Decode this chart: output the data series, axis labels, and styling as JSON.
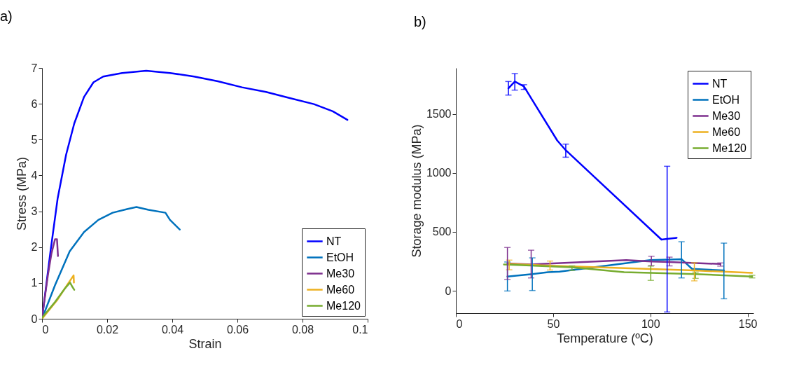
{
  "chart_data": [
    {
      "type": "line",
      "title": "a)",
      "xlabel": "Strain",
      "ylabel": "Stress (MPa)",
      "xlim": [
        0,
        0.1
      ],
      "ylim": [
        0,
        7
      ],
      "xticks": [
        0,
        0.02,
        0.04,
        0.06,
        0.08,
        0.1
      ],
      "yticks": [
        0,
        1,
        2,
        3,
        4,
        5,
        6,
        7
      ],
      "grid": false,
      "legend": "bottom right",
      "marker": "none",
      "line_style": "solid",
      "series": [
        {
          "name": "NT",
          "color": "#0000ff",
          "x": [
            0,
            0.0026,
            0.0048,
            0.0074,
            0.0099,
            0.0129,
            0.0158,
            0.0188,
            0.0246,
            0.032,
            0.0393,
            0.0467,
            0.054,
            0.0614,
            0.0688,
            0.0761,
            0.0835,
            0.0893,
            0.0938
          ],
          "values": [
            0,
            1.88,
            3.36,
            4.58,
            5.45,
            6.19,
            6.6,
            6.76,
            6.86,
            6.92,
            6.86,
            6.76,
            6.63,
            6.46,
            6.33,
            6.16,
            5.99,
            5.79,
            5.55
          ]
        },
        {
          "name": "EtOH",
          "color": "#0072bd",
          "x": [
            0,
            0.004,
            0.0085,
            0.0129,
            0.0173,
            0.0217,
            0.0261,
            0.029,
            0.0327,
            0.0379,
            0.0393,
            0.0423
          ],
          "values": [
            0,
            0.94,
            1.88,
            2.42,
            2.76,
            2.96,
            3.06,
            3.12,
            3.04,
            2.96,
            2.76,
            2.49
          ]
        },
        {
          "name": "Me30",
          "color": "#7e2f8e",
          "x": [
            0,
            0.0018,
            0.0029,
            0.004,
            0.0046,
            0.0049
          ],
          "values": [
            0.03,
            1.21,
            1.82,
            2.22,
            2.22,
            1.75
          ]
        },
        {
          "name": "Me60",
          "color": "#edb120",
          "x": [
            0,
            0.0048,
            0.0077,
            0.0097,
            0.0098
          ],
          "values": [
            0,
            0.54,
            0.94,
            1.21,
            1.01
          ]
        },
        {
          "name": "Me120",
          "color": "#77ac30",
          "x": [
            0,
            0.004,
            0.007,
            0.0086,
            0.0092,
            0.0099
          ],
          "values": [
            0.03,
            0.47,
            0.84,
            1.01,
            0.91,
            0.81
          ]
        }
      ]
    },
    {
      "type": "line",
      "title": "b)",
      "xlabel": "Temperature (ºC)",
      "ylabel": "Storage modulus (MPa)",
      "xlim": [
        0,
        153
      ],
      "ylim": [
        -190,
        1890
      ],
      "xticks": [
        0,
        50,
        100,
        150
      ],
      "yticks": [
        0,
        500,
        1000,
        1500
      ],
      "grid": false,
      "legend": "top right",
      "marker": "none",
      "line_style": "solid",
      "series": [
        {
          "name": "NT",
          "color": "#0000ff",
          "x": [
            27,
            30.3,
            35,
            52.1,
            56.5,
            105.7,
            108.6,
            113.5
          ],
          "values": [
            1717,
            1775,
            1733,
            1275,
            1192,
            434,
            440,
            449
          ],
          "errors": [
            [
              1660,
              1775
            ],
            [
              1702,
              1842
            ],
            [
              1708,
              1748
            ],
            null,
            [
              1133,
              1244
            ],
            null,
            [
              -180,
              1056
            ],
            null
          ]
        },
        {
          "name": "EtOH",
          "color": "#0072bd",
          "x": [
            26.5,
            39.3,
            47.4,
            53.3,
            99.9,
            116,
            121.4,
            137.8
          ],
          "values": [
            121,
            141,
            158,
            162,
            260,
            268,
            186,
            172
          ],
          "errors": [
            [
              -2,
              244
            ],
            [
              2,
              279
            ],
            null,
            null,
            null,
            [
              109,
              416
            ],
            null,
            [
              -68,
              404
            ]
          ]
        },
        {
          "name": "Me30",
          "color": "#7e2f8e",
          "x": [
            26.5,
            38.7,
            87.6,
            100.5,
            109.8,
            136
          ],
          "values": [
            232,
            223,
            260,
            248,
            244,
            227
          ],
          "errors": [
            [
              96,
              367
            ],
            [
              109,
              344
            ],
            null,
            [
              213,
              293
            ],
            [
              211,
              285
            ],
            [
              209,
              236
            ]
          ]
        },
        {
          "name": "Me60",
          "color": "#edb120",
          "x": [
            27.4,
            48.4,
            122.6,
            152.3
          ],
          "values": [
            227,
            213,
            172,
            152
          ],
          "errors": [
            [
              178,
              260
            ],
            [
              176,
              252
            ],
            [
              84,
              238
            ],
            null
          ]
        },
        {
          "name": "Me120",
          "color": "#77ac30",
          "x": [
            24.7,
            59.7,
            86.5,
            100.2,
            123.2,
            152.3
          ],
          "values": [
            223,
            199,
            158,
            152,
            141,
            121
          ],
          "errors": [
            null,
            [
              172,
              211
            ],
            null,
            [
              88,
              209
            ],
            [
              105,
              158
            ],
            [
              109,
              131
            ]
          ]
        }
      ]
    }
  ]
}
